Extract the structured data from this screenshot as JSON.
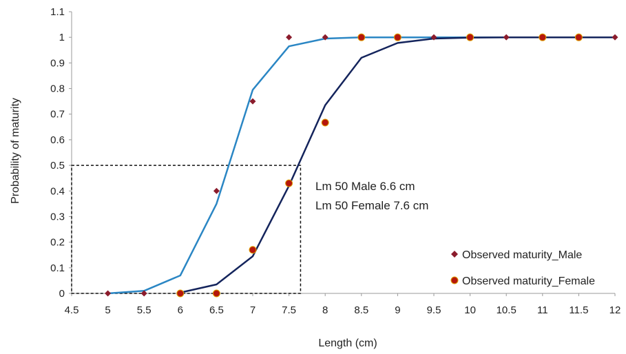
{
  "chart_data": {
    "type": "line",
    "title": "",
    "xlabel": "Length (cm)",
    "ylabel": "Probability of maturity",
    "xlim": [
      4.5,
      12
    ],
    "ylim": [
      0,
      1.1
    ],
    "x_ticks": [
      "4.5",
      "5",
      "5.5",
      "6",
      "6.5",
      "7",
      "7.5",
      "8",
      "8.5",
      "9",
      "9.5",
      "10",
      "10.5",
      "11",
      "11.5",
      "12"
    ],
    "y_ticks": [
      "0",
      "0.1",
      "0.2",
      "0.3",
      "0.4",
      "0.5",
      "0.6",
      "0.7",
      "0.8",
      "0.9",
      "1",
      "1.1"
    ],
    "grid": false,
    "legend_position": "bottom-right",
    "annotations": [
      "Lm 50 Male 6.6 cm",
      "Lm 50 Female 7.6 cm"
    ],
    "reference_box": {
      "x_from": 4.5,
      "x_to": 7.66,
      "y_from": 0,
      "y_to": 0.5,
      "style": "dashed"
    },
    "series": [
      {
        "name": "",
        "kind": "fitted-line",
        "color": "#2a86c4",
        "x": [
          5,
          5.5,
          6,
          6.5,
          7,
          7.5,
          8,
          8.5,
          9,
          9.5,
          10,
          10.5,
          11,
          11.5,
          12
        ],
        "values": [
          0.0,
          0.01,
          0.07,
          0.35,
          0.795,
          0.965,
          0.995,
          1.0,
          1.0,
          1.0,
          1.0,
          1.0,
          1.0,
          1.0,
          1.0
        ]
      },
      {
        "name": "",
        "kind": "fitted-line",
        "color": "#14245c",
        "x": [
          6,
          6.5,
          7,
          7.5,
          8,
          8.5,
          9,
          9.5,
          10,
          10.5,
          11,
          11.5,
          12
        ],
        "values": [
          0.003,
          0.035,
          0.145,
          0.42,
          0.735,
          0.92,
          0.978,
          0.995,
          0.999,
          1.0,
          1.0,
          1.0,
          1.0
        ]
      },
      {
        "name": "Observed maturity_Male",
        "kind": "marker-diamond",
        "color": "#8b1c2c",
        "x": [
          5,
          5.5,
          6,
          6.5,
          7,
          7.5,
          8,
          8.5,
          9,
          9.5,
          10,
          10.5,
          11,
          11.5,
          12
        ],
        "values": [
          0,
          0,
          0,
          0.4,
          0.75,
          1,
          1,
          1,
          1,
          1,
          1,
          1,
          1,
          1,
          1
        ]
      },
      {
        "name": "Observed maturity_Female",
        "kind": "marker-circle",
        "color": "#b5170d",
        "x": [
          6,
          6.5,
          7,
          7.5,
          8,
          8.5,
          9,
          10,
          11,
          11.5
        ],
        "values": [
          0,
          0,
          0.17,
          0.43,
          0.667,
          1,
          1,
          1,
          1,
          1
        ]
      }
    ]
  }
}
